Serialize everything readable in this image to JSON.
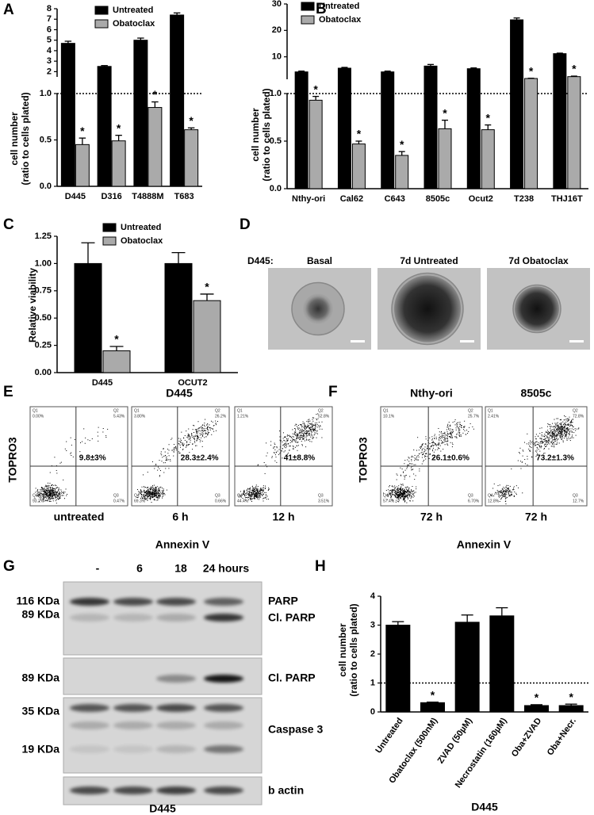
{
  "chart_data": [
    {
      "panel": "A",
      "type": "bar",
      "categories": [
        "D445",
        "D316",
        "T4888M",
        "T683"
      ],
      "series": [
        {
          "name": "Untreated",
          "color": "#000000",
          "values": [
            4.7,
            2.5,
            5.0,
            7.4
          ],
          "errors": [
            0.2,
            0.08,
            0.2,
            0.2
          ]
        },
        {
          "name": "Obatoclax",
          "color": "#aaaaaa",
          "values": [
            0.45,
            0.49,
            0.85,
            0.61
          ],
          "errors": [
            0.07,
            0.06,
            0.06,
            0.02
          ],
          "annotations": [
            "*",
            "*",
            "*",
            "*"
          ]
        }
      ],
      "ylabel": [
        "cell number",
        "(ratio to cells plated)"
      ],
      "ylim": [
        0,
        8
      ],
      "ybreak": [
        1,
        1.5
      ],
      "yticks": [
        {
          "value": 0,
          "label": "0.0"
        },
        {
          "value": 0.5,
          "label": "0.5"
        },
        {
          "value": 1,
          "label": "1.0"
        },
        2,
        3,
        4,
        5,
        6,
        7,
        8
      ],
      "hline": 1
    },
    {
      "panel": "B",
      "type": "bar",
      "categories": [
        "Nthy-ori",
        "Cal62",
        "C643",
        "8505c",
        "Ocut2",
        "T238",
        "THJ16T"
      ],
      "series": [
        {
          "name": "Untreated",
          "color": "#000000",
          "values": [
            4.3,
            5.7,
            4.3,
            6.5,
            5.5,
            24,
            11.2
          ],
          "errors": [
            0.3,
            0.3,
            0.3,
            0.6,
            0.3,
            0.7,
            0.2
          ]
        },
        {
          "name": "Obatoclax",
          "color": "#aaaaaa",
          "values": [
            0.93,
            0.47,
            0.35,
            0.63,
            0.62,
            1.8,
            2.5
          ],
          "errors": [
            0.04,
            0.03,
            0.04,
            0.09,
            0.05,
            0.1,
            0.2
          ],
          "annotations": [
            "*",
            "*",
            "*",
            "*",
            "*",
            "*",
            "*"
          ]
        }
      ],
      "ylabel": [
        "cell number",
        "(ratio to cells plated)"
      ],
      "ylim": [
        0,
        30
      ],
      "ybreak": [
        1,
        1.5
      ],
      "yticks": [
        {
          "value": 0,
          "label": "0.0"
        },
        {
          "value": 0.5,
          "label": "0.5"
        },
        {
          "value": 1,
          "label": "1.0"
        },
        10,
        20,
        30
      ],
      "hline": 1
    },
    {
      "panel": "C",
      "type": "bar",
      "categories": [
        "D445",
        "OCUT2"
      ],
      "series": [
        {
          "name": "Untreated",
          "color": "#000000",
          "values": [
            1.0,
            1.0
          ],
          "errors": [
            0.19,
            0.1
          ]
        },
        {
          "name": "Obatoclax",
          "color": "#aaaaaa",
          "values": [
            0.2,
            0.66
          ],
          "errors": [
            0.04,
            0.06
          ],
          "annotations": [
            "*",
            "*"
          ]
        }
      ],
      "ylabel": "Relative viability",
      "ylim": [
        0,
        1.25
      ],
      "yticks": [
        {
          "value": 0,
          "label": "0.00"
        },
        {
          "value": 0.25,
          "label": "0.25"
        },
        {
          "value": 0.5,
          "label": "0.50"
        },
        {
          "value": 0.75,
          "label": "0.75"
        },
        {
          "value": 1,
          "label": "1.00"
        },
        {
          "value": 1.25,
          "label": "1.25"
        }
      ]
    },
    {
      "panel": "H",
      "type": "bar",
      "categories": [
        "Untreated",
        "Obatoclax (500nM)",
        "ZVAD (50µM)",
        "Necrostatin (160µM)",
        "Oba+ZVAD",
        "Oba+Necr."
      ],
      "values": [
        3.0,
        0.32,
        3.1,
        3.32,
        0.22,
        0.22
      ],
      "errors": [
        0.12,
        0.02,
        0.25,
        0.28,
        0.03,
        0.05
      ],
      "color": "#000000",
      "annotations": [
        null,
        "*",
        null,
        null,
        "*",
        "*"
      ],
      "ylabel": [
        "cell number",
        "(ratio to cells plated)"
      ],
      "xlabel": "D445",
      "ylim": [
        0,
        4
      ],
      "yticks": [
        0,
        1,
        2,
        3,
        4
      ],
      "hline": 1
    }
  ],
  "panel_d": {
    "panel": "D",
    "cell_line": "D445:",
    "images": [
      "Basal",
      "7d Untreated",
      "7d Obatoclax"
    ]
  },
  "panel_e": {
    "panel": "E",
    "title": "D445",
    "ylabel": "TOPRO3",
    "xlabel": "Annexin V",
    "plots": [
      {
        "label": "untreated",
        "percent": "9.8±3%",
        "quadrants": [
          [
            "Q1",
            "0.00%"
          ],
          [
            "Q2",
            "5.43%"
          ],
          [
            "Q3",
            "0.47%"
          ],
          [
            "Q4",
            "93.2%"
          ]
        ]
      },
      {
        "label": "6 h",
        "percent": "28.3±2.4%",
        "quadrants": [
          [
            "Q1",
            "3.80%"
          ],
          [
            "Q2",
            "26.2%"
          ],
          [
            "Q3",
            "0.66%"
          ],
          [
            "Q4",
            "69.3%"
          ]
        ]
      },
      {
        "label": "12 h",
        "percent": "41±8.8%",
        "quadrants": [
          [
            "Q1",
            "1.21%"
          ],
          [
            "Q2",
            "52.8%"
          ],
          [
            "Q3",
            "3.51%"
          ],
          [
            "Q4",
            "44.4%"
          ]
        ]
      }
    ]
  },
  "panel_f": {
    "panel": "F",
    "ylabel": "TOPRO3",
    "xlabel": "Annexin V",
    "plots": [
      {
        "title": "Nthy-ori",
        "label": "72 h",
        "percent": "26.1±0.6%",
        "quadrants": [
          [
            "Q1",
            "10.1%"
          ],
          [
            "Q2",
            "25.7%"
          ],
          [
            "Q3",
            "6.70%"
          ],
          [
            "Q4",
            "57.4%"
          ]
        ]
      },
      {
        "title": "8505c",
        "label": "72 h",
        "percent": "73.2±1.3%",
        "quadrants": [
          [
            "Q1",
            "2.41%"
          ],
          [
            "Q2",
            "72.8%"
          ],
          [
            "Q3",
            "12.7%"
          ],
          [
            "Q4",
            "12.8%"
          ]
        ]
      }
    ]
  },
  "panel_g": {
    "panel": "G",
    "columns": [
      "-",
      "6",
      "18",
      "24 hours"
    ],
    "markers": [
      "116 KDa",
      "89 KDa",
      "89 KDa",
      "35 KDa",
      "19 KDa"
    ],
    "proteins": [
      "PARP",
      "Cl. PARP",
      "Cl. PARP",
      "Caspase 3",
      "b actin"
    ],
    "footer": "D445"
  }
}
